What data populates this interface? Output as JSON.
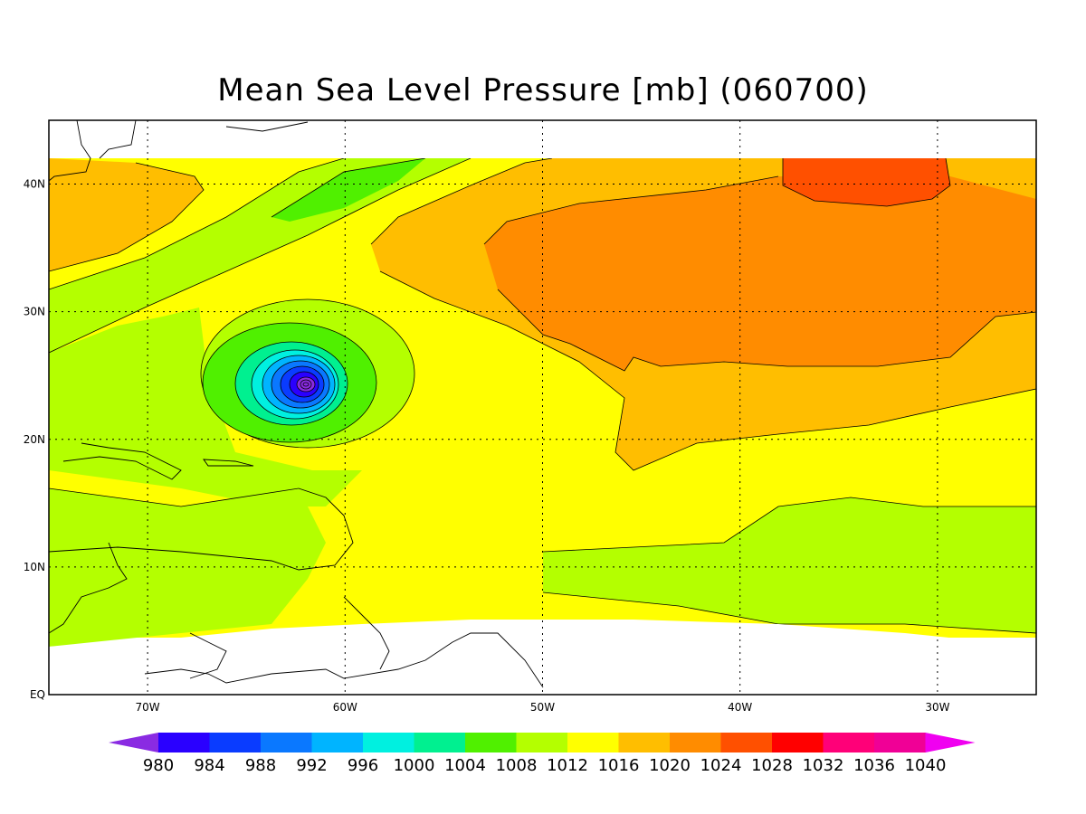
{
  "title": "Mean Sea Level Pressure [mb] (060700)",
  "map": {
    "longitude_labels": [
      {
        "lon": -70,
        "label": "70W"
      },
      {
        "lon": -60,
        "label": "60W"
      },
      {
        "lon": -50,
        "label": "50W"
      },
      {
        "lon": -40,
        "label": "40W"
      },
      {
        "lon": -30,
        "label": "30W"
      }
    ],
    "latitude_labels": [
      {
        "lat": 40,
        "label": "40N"
      },
      {
        "lat": 30,
        "label": "30N"
      },
      {
        "lat": 20,
        "label": "20N"
      },
      {
        "lat": 10,
        "label": "10N"
      },
      {
        "lat": 0,
        "label": "EQ"
      }
    ],
    "extent": {
      "lon_min": -75,
      "lon_max": -25,
      "lat_min": 0,
      "lat_max": 45
    },
    "data_extent": {
      "lat_max": 42
    },
    "low_center": {
      "lon": -62,
      "lat": 24,
      "min_pressure_mb": 980
    },
    "grid": "dotted"
  },
  "colorbar": {
    "levels": [
      "980",
      "984",
      "988",
      "992",
      "996",
      "1000",
      "1004",
      "1008",
      "1012",
      "1016",
      "1020",
      "1024",
      "1028",
      "1032",
      "1036",
      "1040"
    ],
    "colors": [
      "#8a2be2",
      "#2a00ff",
      "#0a3cff",
      "#0a78ff",
      "#00b4ff",
      "#00f0e0",
      "#00f090",
      "#50f000",
      "#b4ff00",
      "#ffff00",
      "#ffbe00",
      "#ff8c00",
      "#ff5000",
      "#ff0000",
      "#ff0078",
      "#f00096",
      "#f000f0"
    ]
  }
}
